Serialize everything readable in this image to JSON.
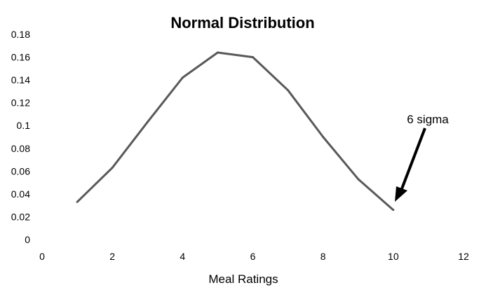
{
  "chart_data": {
    "type": "line",
    "title": "Normal Distribution",
    "xlabel": "Meal Ratings",
    "ylabel": "",
    "xlim": [
      0,
      12
    ],
    "ylim": [
      0,
      0.18
    ],
    "xticks": [
      "0",
      "2",
      "4",
      "6",
      "8",
      "10",
      "12"
    ],
    "yticks": [
      "0",
      "0.02",
      "0.04",
      "0.06",
      "0.08",
      "0.1",
      "0.12",
      "0.14",
      "0.16",
      "0.18"
    ],
    "grid": false,
    "series": [
      {
        "x": [
          1,
          2,
          3,
          4,
          5,
          6,
          7,
          8,
          9,
          10
        ],
        "y": [
          0.033,
          0.063,
          0.103,
          0.142,
          0.164,
          0.16,
          0.131,
          0.09,
          0.053,
          0.026
        ],
        "color": "#595959"
      }
    ],
    "annotations": [
      {
        "text": "6 sigma",
        "x": 10,
        "y": 0.026
      }
    ]
  }
}
